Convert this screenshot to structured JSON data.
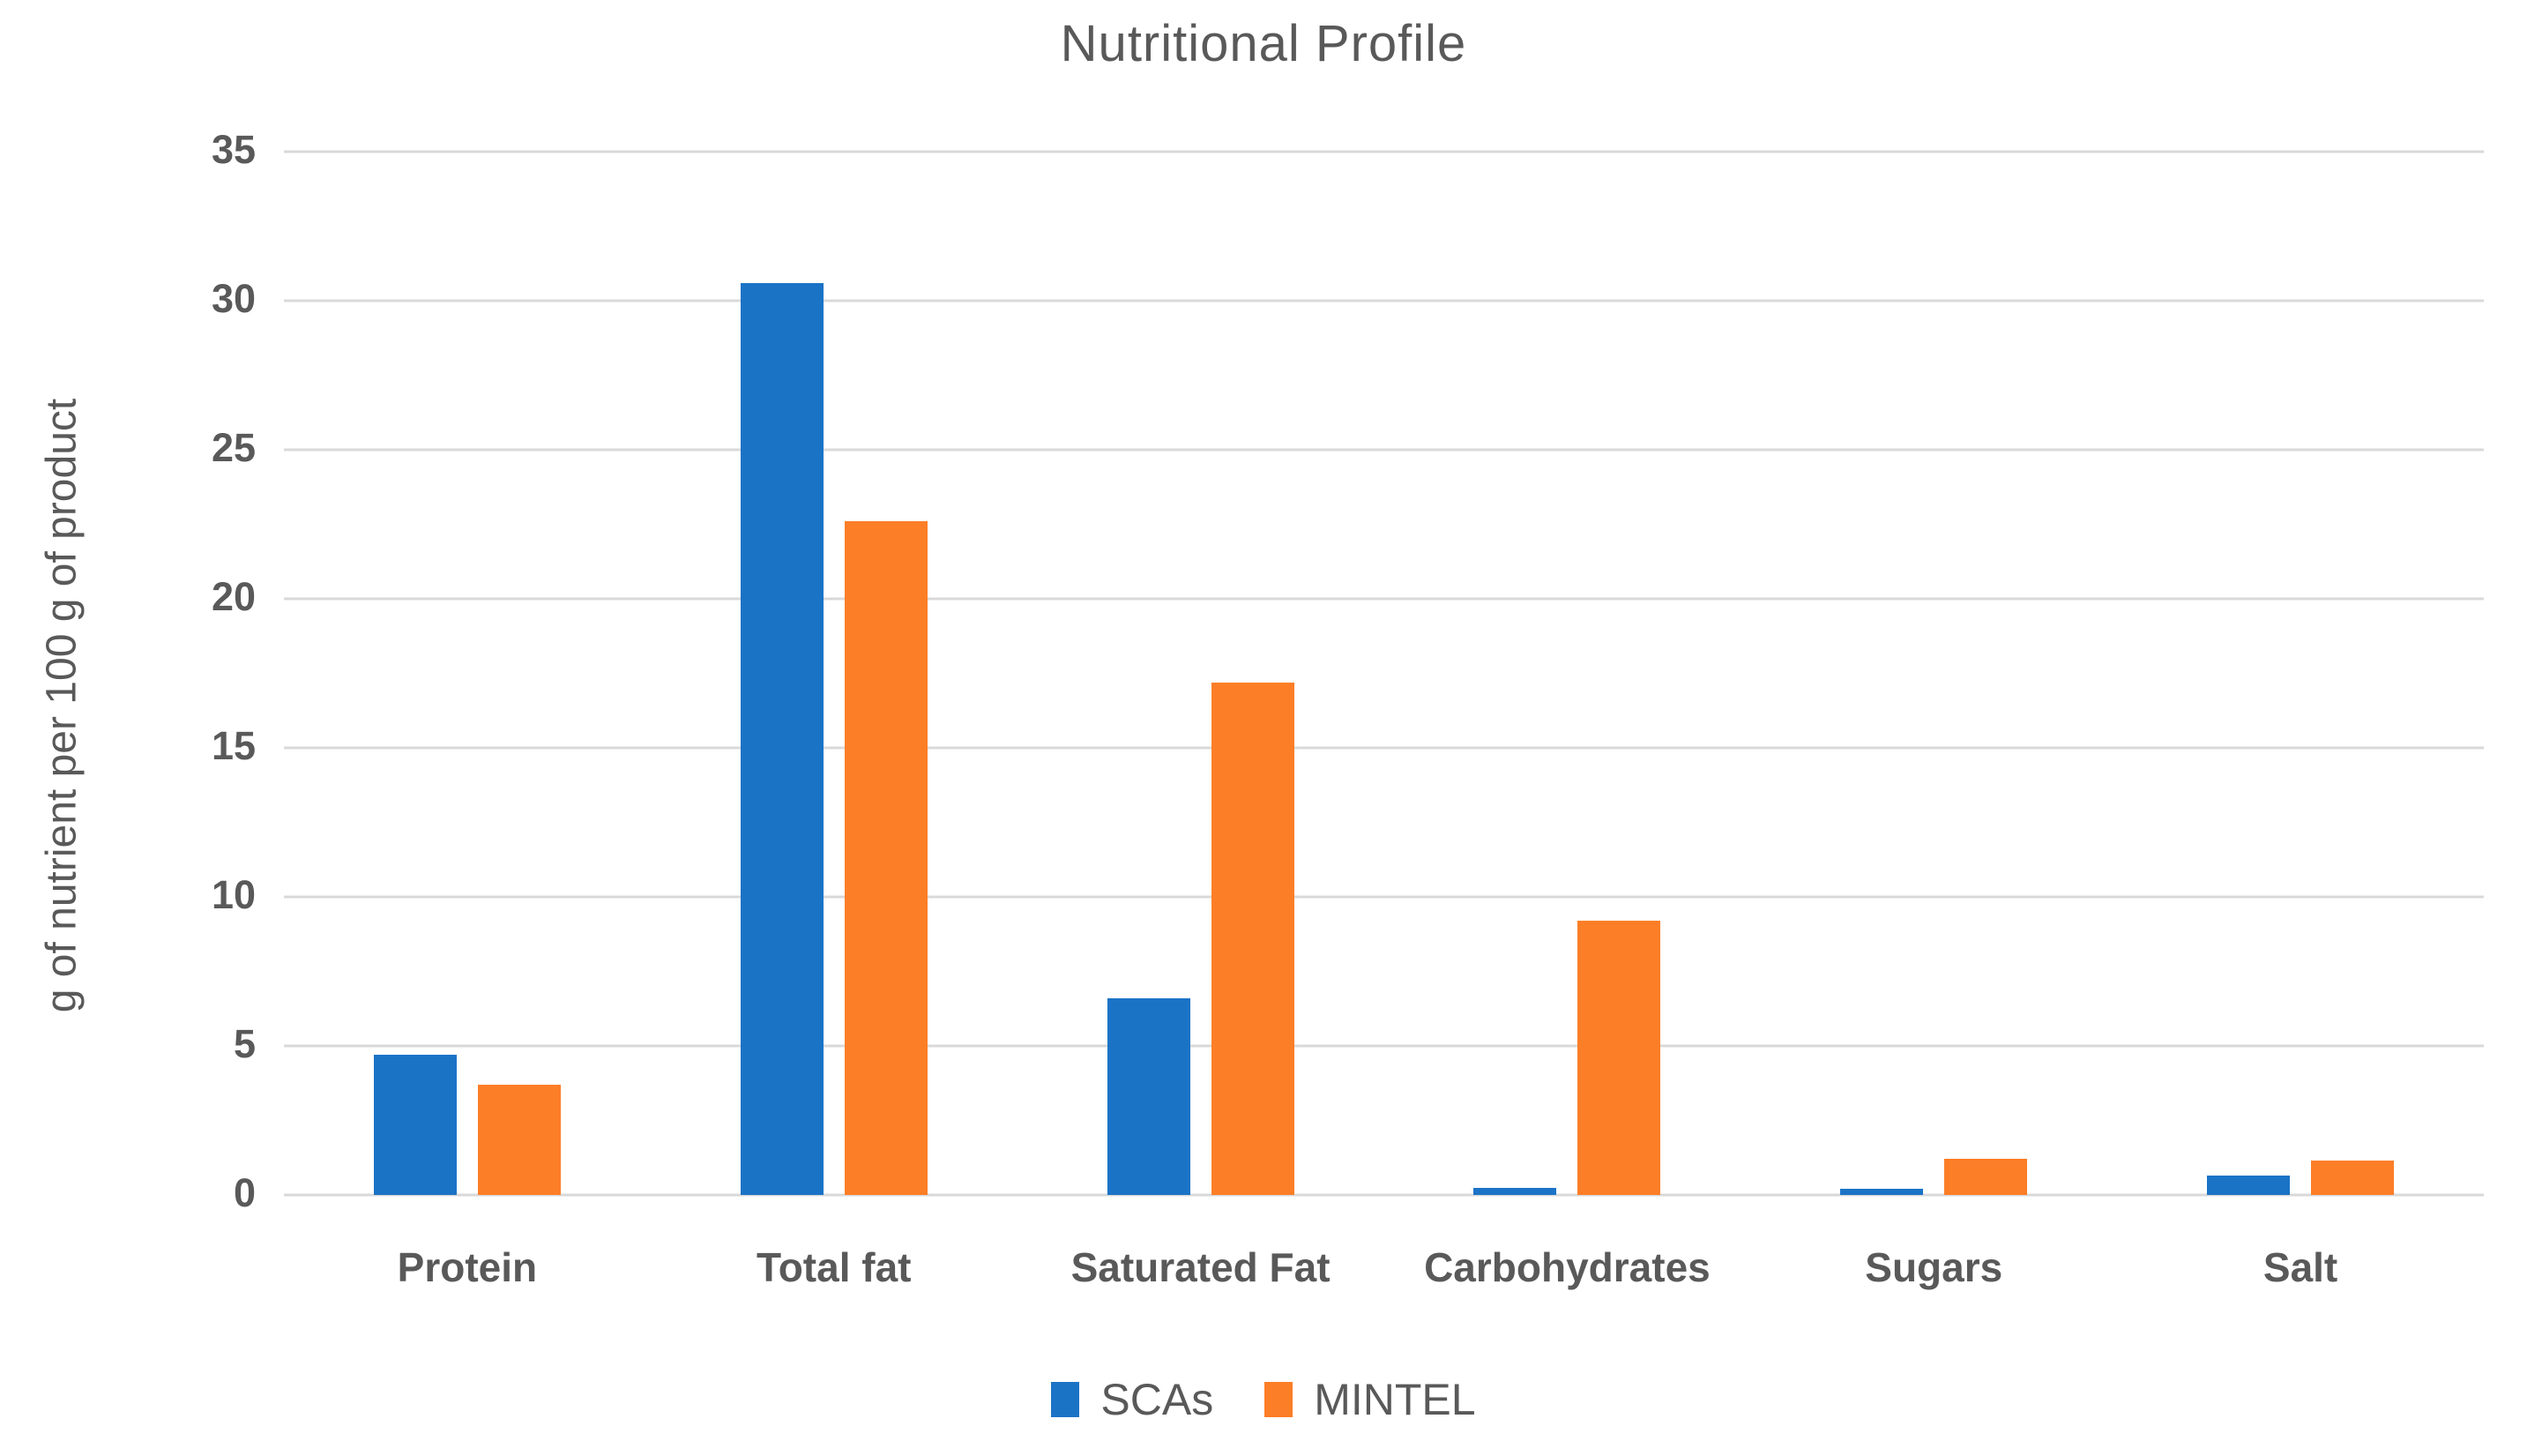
{
  "chart_data": {
    "type": "bar",
    "title": "Nutritional Profile",
    "ylabel": "g of nutrient per 100 g of product",
    "xlabel": "",
    "ylim": [
      0,
      35
    ],
    "ytick_step": 5,
    "yticks": [
      0,
      5,
      10,
      15,
      20,
      25,
      30,
      35
    ],
    "grid": "horizontal-only",
    "legend_position": "bottom-center",
    "categories": [
      "Protein",
      "Total fat",
      "Saturated Fat",
      "Carbohydrates",
      "Sugars",
      "Salt"
    ],
    "series": [
      {
        "name": "SCAs",
        "color": "#1B73C6",
        "values": [
          4.7,
          30.6,
          6.6,
          0.25,
          0.2,
          0.65
        ]
      },
      {
        "name": "MINTEL",
        "color": "#FC7E27",
        "values": [
          3.7,
          22.6,
          17.2,
          9.2,
          1.2,
          1.15
        ]
      }
    ],
    "colors": {
      "gridline": "#D9D9D9",
      "text": "#595959",
      "background": "#FFFFFF"
    }
  }
}
